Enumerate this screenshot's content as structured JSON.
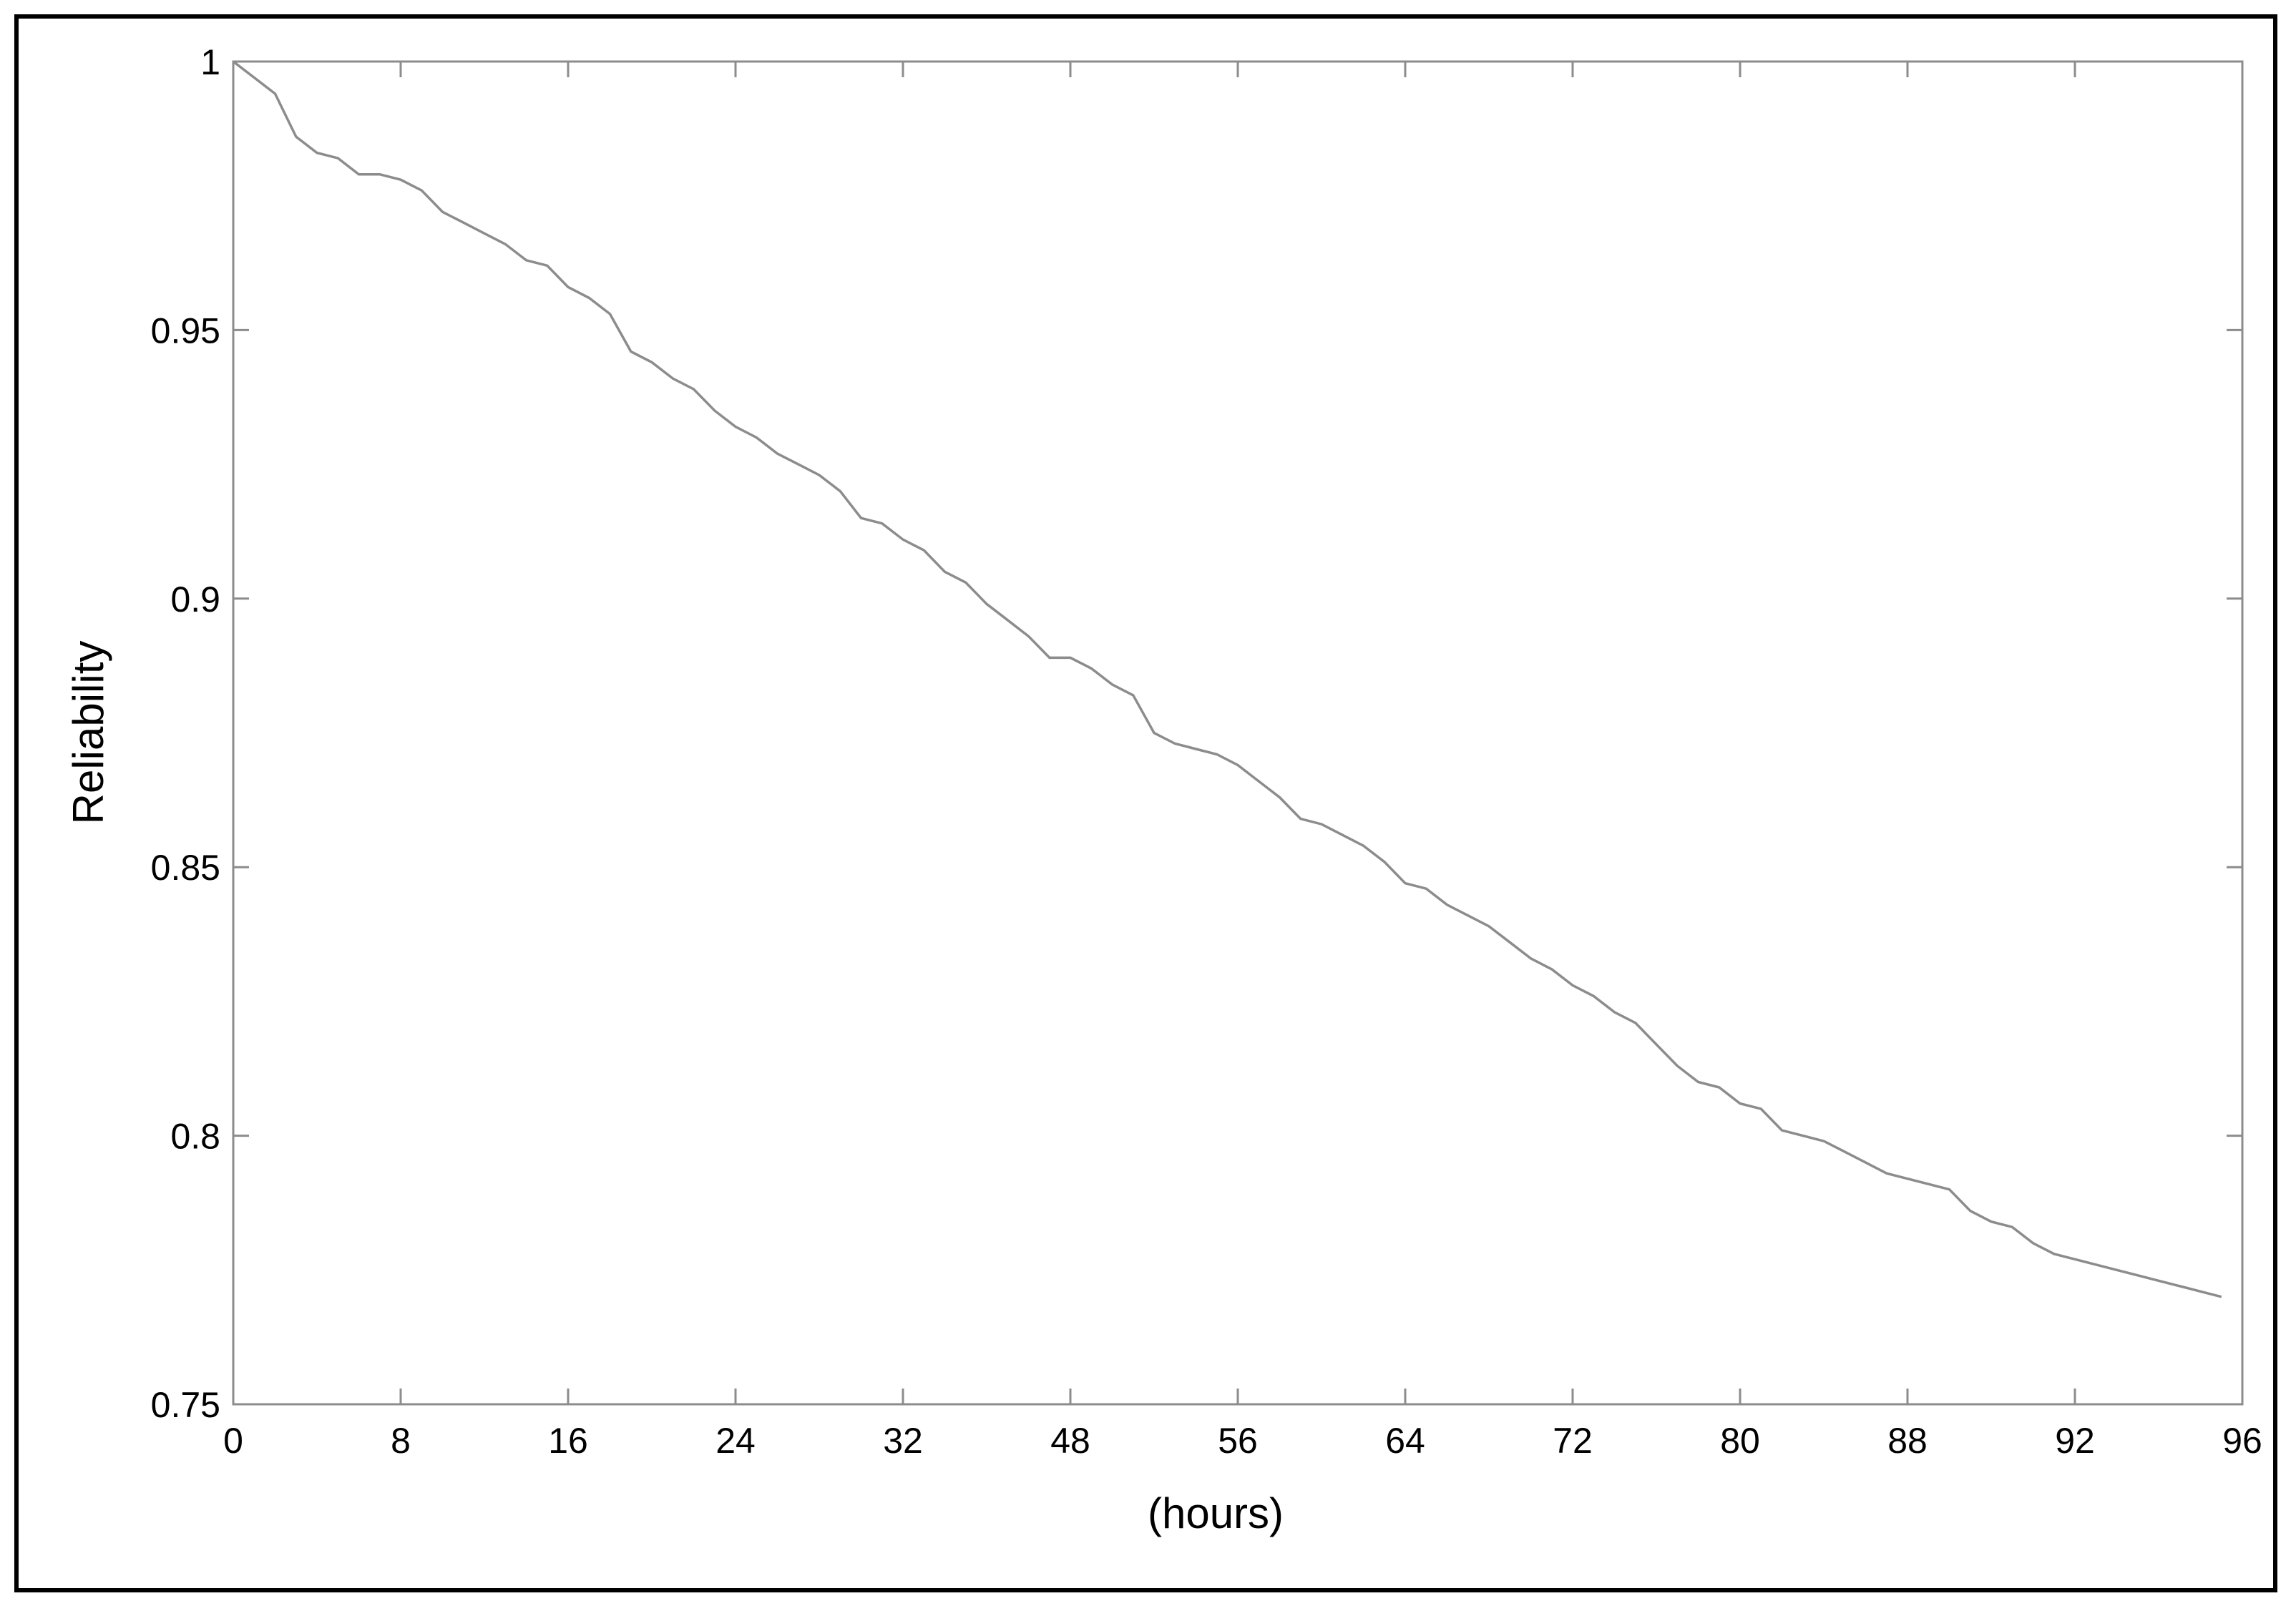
{
  "chart_data": {
    "type": "line",
    "title": "",
    "xlabel": "(hours)",
    "ylabel": "Reliability",
    "xlim": [
      0,
      96
    ],
    "ylim": [
      0.75,
      1
    ],
    "grid": false,
    "x_tick_labels": [
      "0",
      "8",
      "16",
      "24",
      "32",
      "48",
      "56",
      "64",
      "72",
      "80",
      "88",
      "92",
      "96"
    ],
    "y_ticks": [
      0.75,
      0.8,
      0.85,
      0.9,
      0.95,
      1
    ],
    "y_tick_labels": [
      "0.75",
      "0.8",
      "0.85",
      "0.9",
      "0.95",
      "1"
    ],
    "line_color": "#8c8c8c",
    "series": [
      {
        "x": [
          0,
          1,
          2,
          3,
          4,
          5,
          6,
          7,
          8,
          9,
          10,
          11,
          12,
          13,
          14,
          15,
          16,
          17,
          18,
          19,
          20,
          21,
          22,
          23,
          24,
          25,
          26,
          27,
          28,
          29,
          30,
          31,
          32,
          33,
          34,
          35,
          36,
          37,
          38,
          39,
          40,
          41,
          42,
          43,
          44,
          45,
          46,
          47,
          48,
          49,
          50,
          51,
          52,
          53,
          54,
          55,
          56,
          57,
          58,
          59,
          60,
          61,
          62,
          63,
          64,
          65,
          66,
          67,
          68,
          69,
          70,
          71,
          72,
          73,
          74,
          75,
          76,
          77,
          78,
          79,
          80,
          81,
          82,
          83,
          84,
          85,
          86,
          87,
          88,
          89,
          90,
          91,
          92,
          93,
          94,
          95
        ],
        "y": [
          1.0,
          0.997,
          0.994,
          0.986,
          0.983,
          0.982,
          0.979,
          0.979,
          0.978,
          0.976,
          0.972,
          0.97,
          0.968,
          0.966,
          0.963,
          0.962,
          0.958,
          0.956,
          0.953,
          0.946,
          0.944,
          0.941,
          0.939,
          0.935,
          0.932,
          0.93,
          0.927,
          0.925,
          0.923,
          0.92,
          0.915,
          0.914,
          0.911,
          0.909,
          0.905,
          0.903,
          0.899,
          0.896,
          0.893,
          0.889,
          0.889,
          0.887,
          0.884,
          0.882,
          0.875,
          0.873,
          0.872,
          0.871,
          0.869,
          0.866,
          0.863,
          0.859,
          0.858,
          0.856,
          0.854,
          0.851,
          0.847,
          0.846,
          0.843,
          0.841,
          0.839,
          0.836,
          0.833,
          0.831,
          0.828,
          0.826,
          0.823,
          0.821,
          0.817,
          0.813,
          0.81,
          0.809,
          0.806,
          0.805,
          0.801,
          0.8,
          0.799,
          0.797,
          0.795,
          0.793,
          0.792,
          0.791,
          0.79,
          0.786,
          0.784,
          0.783,
          0.78,
          0.778,
          0.777,
          0.776,
          0.775,
          0.774,
          0.773,
          0.772,
          0.771,
          0.77
        ]
      }
    ]
  }
}
